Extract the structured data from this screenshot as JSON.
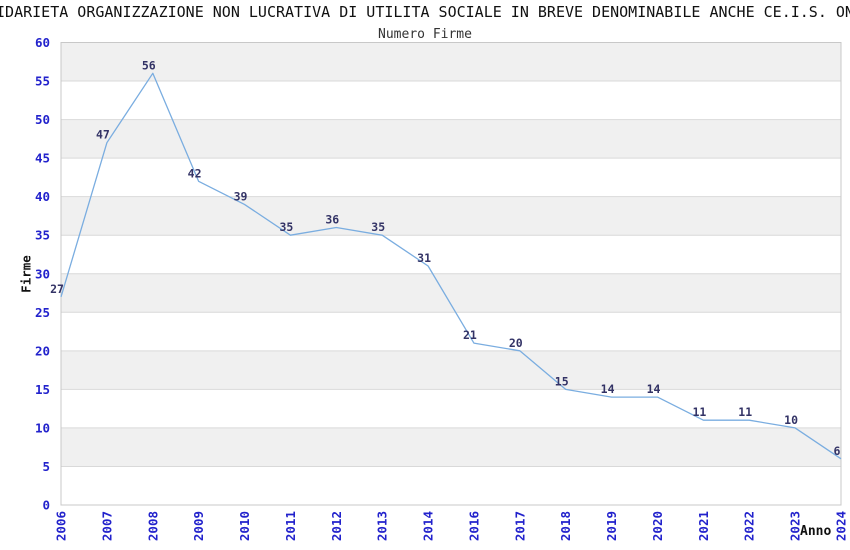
{
  "chart_data": {
    "type": "line",
    "title": "IDARIETA ORGANIZZAZIONE NON LUCRATIVA DI UTILITA SOCIALE IN BREVE DENOMINABILE ANCHE CE.I.S. ON",
    "subtitle": "Numero Firme",
    "xlabel": "Anno",
    "ylabel": "Firme",
    "categories": [
      "2006",
      "2007",
      "2008",
      "2009",
      "2010",
      "2011",
      "2012",
      "2013",
      "2014",
      "2016",
      "2017",
      "2018",
      "2019",
      "2020",
      "2021",
      "2022",
      "2023",
      "2024"
    ],
    "values": [
      27,
      47,
      56,
      42,
      39,
      35,
      36,
      35,
      31,
      21,
      20,
      15,
      14,
      14,
      11,
      11,
      10,
      6
    ],
    "yticks": [
      0,
      5,
      10,
      15,
      20,
      25,
      30,
      35,
      40,
      45,
      50,
      55,
      60
    ],
    "ylim": [
      0,
      60
    ],
    "grid": "horizontal",
    "legend": "none",
    "band_fill": "alternating",
    "colors": {
      "line": "#7aade0",
      "tick_label": "#2222cc",
      "data_label": "#333366",
      "band": "#f0f0f0",
      "gridline": "#d9d9d9",
      "plot_border": "#c8c8c8",
      "title": "#111111",
      "subtitle": "#333333"
    }
  }
}
